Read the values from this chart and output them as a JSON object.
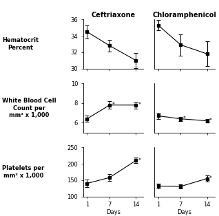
{
  "days": [
    1,
    7,
    14
  ],
  "ceftriaxone": {
    "hematocrit": {
      "means": [
        34.5,
        32.8,
        31.0
      ],
      "se": [
        0.8,
        0.7,
        0.9
      ]
    },
    "wbc": {
      "means": [
        6.4,
        7.8,
        7.8
      ],
      "se": [
        0.3,
        0.4,
        0.35
      ],
      "asterisk": [
        false,
        true,
        true
      ]
    },
    "platelets": {
      "means": [
        140,
        158,
        210
      ],
      "se": [
        12,
        10,
        8
      ],
      "asterisk": [
        false,
        false,
        true
      ]
    }
  },
  "chloramphenicol": {
    "hematocrit": {
      "means": [
        35.3,
        32.9,
        31.8
      ],
      "se": [
        0.6,
        1.3,
        1.5
      ]
    },
    "wbc": {
      "means": [
        6.7,
        6.4,
        6.2
      ],
      "se": [
        0.3,
        0.2,
        0.2
      ],
      "asterisk": [
        false,
        true,
        true
      ]
    },
    "platelets": {
      "means": [
        132,
        131,
        155
      ],
      "se": [
        8,
        7,
        9
      ],
      "asterisk": [
        false,
        false,
        true
      ]
    }
  },
  "ylims": {
    "hematocrit": [
      30,
      36
    ],
    "wbc": [
      5,
      10
    ],
    "platelets": [
      100,
      250
    ]
  },
  "yticks": {
    "hematocrit": [
      30,
      32,
      34,
      36
    ],
    "wbc": [
      6,
      8,
      10
    ],
    "platelets": [
      100,
      150,
      200,
      250
    ]
  },
  "row_labels": [
    "Hematocrit\nPercent",
    "White Blood Cell\nCount per\nmm³ x 1,000",
    "Platelets per\nmm³ x 1,000"
  ],
  "col_titles": [
    "Ceftriaxone",
    "Chloramphenicol"
  ],
  "xlabel": "Days",
  "line_color": "#000000",
  "marker": "s",
  "markersize": 3.5,
  "capsize": 2,
  "fontsize_title": 7,
  "fontsize_label": 6,
  "fontsize_tick": 6,
  "fontsize_rowlabel": 6
}
